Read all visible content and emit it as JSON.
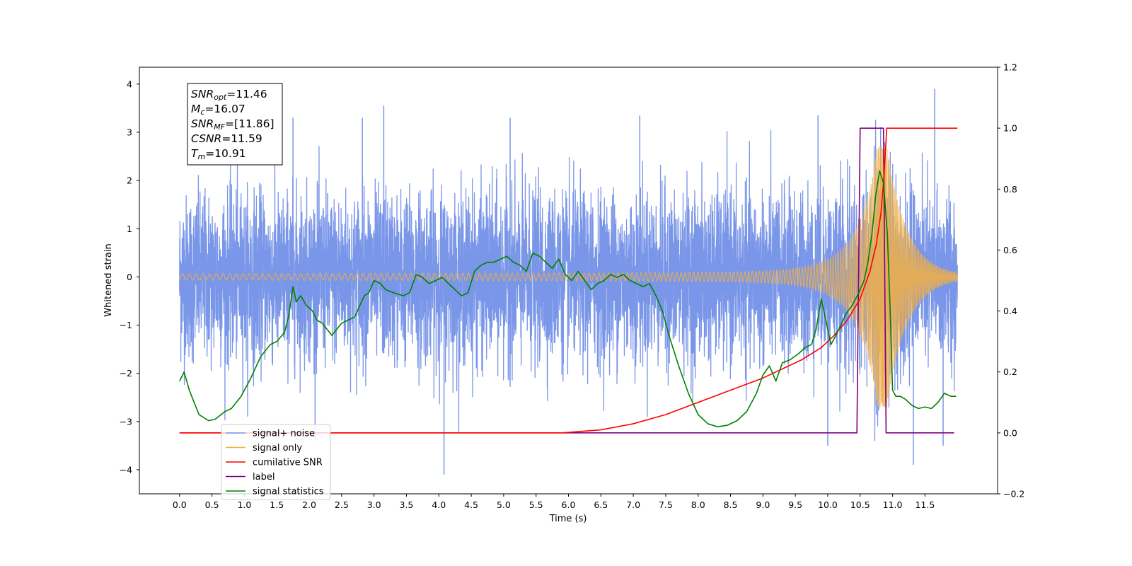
{
  "chart_data": {
    "type": "line",
    "xlabel": "Time (s)",
    "ylabel": "Whitened strain",
    "xlim": [
      -0.62,
      12.62
    ],
    "ylim": [
      -4.5,
      4.35
    ],
    "ylim_right": [
      -0.2,
      1.2
    ],
    "xticks": [
      0.0,
      0.5,
      1.0,
      1.5,
      2.0,
      2.5,
      3.0,
      3.5,
      4.0,
      4.5,
      5.0,
      5.5,
      6.0,
      6.5,
      7.0,
      7.5,
      8.0,
      8.5,
      9.0,
      9.5,
      10.0,
      10.5,
      11.0,
      11.5
    ],
    "xtick_labels": [
      "0.0",
      "0.5",
      "1.0",
      "1.5",
      "2.0",
      "2.5",
      "3.0",
      "3.5",
      "4.0",
      "4.5",
      "5.0",
      "5.5",
      "6.0",
      "6.5",
      "7.0",
      "7.5",
      "8.0",
      "8.5",
      "9.0",
      "9.5",
      "10.0",
      "10.5",
      "11.0",
      "11.5"
    ],
    "yticks_left": [
      -4,
      -3,
      -2,
      -1,
      0,
      1,
      2,
      3,
      4
    ],
    "ytick_labels_left": [
      "−4",
      "−3",
      "−2",
      "−1",
      "0",
      "1",
      "2",
      "3",
      "4"
    ],
    "yticks_right": [
      -0.2,
      0.0,
      0.2,
      0.4,
      0.6,
      0.8,
      1.0,
      1.2
    ],
    "ytick_labels_right": [
      "−0.2",
      "0.0",
      "0.2",
      "0.4",
      "0.6",
      "0.8",
      "1.0",
      "1.2"
    ],
    "grid": false,
    "legend_position": "lower-left",
    "annotation": {
      "lines": [
        {
          "sym": "SNR",
          "sub": "opt",
          "text": "=11.46"
        },
        {
          "sym": "M",
          "sub": "c",
          "text": "=16.07"
        },
        {
          "sym": "SNR",
          "sub": "MF",
          "text": "=[11.86]"
        },
        {
          "sym": "CSNR",
          "sub": "",
          "text": "=11.59"
        },
        {
          "sym": "T",
          "sub": "m",
          "text": "=10.91"
        }
      ]
    },
    "series": [
      {
        "name": "signal+ noise",
        "color": "#7a96e8",
        "axis": "left",
        "noise_sd": 0.85,
        "x_range": [
          0.0,
          12.0
        ],
        "notable_peaks": [
          {
            "x": 2.82,
            "y": 3.3
          },
          {
            "x": 3.15,
            "y": 3.55
          },
          {
            "x": 1.75,
            "y": 3.3
          },
          {
            "x": 5.1,
            "y": 3.3
          },
          {
            "x": 7.1,
            "y": 3.35
          },
          {
            "x": 9.85,
            "y": 3.35
          },
          {
            "x": 11.65,
            "y": 3.9
          },
          {
            "x": 4.08,
            "y": -4.1
          },
          {
            "x": 11.32,
            "y": -3.9
          },
          {
            "x": 11.78,
            "y": -3.5
          },
          {
            "x": 10.0,
            "y": -3.5
          }
        ]
      },
      {
        "name": "signal only",
        "color": "#f5b041",
        "axis": "left",
        "chirp": {
          "merger_time": 10.91,
          "peak_amplitude": 2.7,
          "ringdown_end": 12.0
        }
      },
      {
        "name": "cumilative SNR",
        "color": "#ff0000",
        "axis": "right",
        "x": [
          0.0,
          5.9,
          6.5,
          7.0,
          7.5,
          8.0,
          8.5,
          9.0,
          9.3,
          9.6,
          9.9,
          10.1,
          10.3,
          10.5,
          10.65,
          10.75,
          10.82,
          10.87,
          10.91,
          12.0
        ],
        "y": [
          0.0,
          0.0,
          0.01,
          0.03,
          0.06,
          0.1,
          0.14,
          0.18,
          0.21,
          0.24,
          0.28,
          0.32,
          0.37,
          0.44,
          0.53,
          0.62,
          0.72,
          0.85,
          1.0,
          1.0
        ]
      },
      {
        "name": "label",
        "color": "#800080",
        "axis": "right",
        "x": [
          0.0,
          10.45,
          10.5,
          10.86,
          10.9,
          11.95
        ],
        "y": [
          0.0,
          0.0,
          1.0,
          1.0,
          0.0,
          0.0
        ]
      },
      {
        "name": "signal statistics",
        "color": "#008000",
        "axis": "right",
        "x": [
          0.0,
          0.07,
          0.15,
          0.3,
          0.45,
          0.55,
          0.7,
          0.8,
          0.95,
          1.1,
          1.25,
          1.4,
          1.5,
          1.62,
          1.68,
          1.75,
          1.8,
          1.87,
          1.95,
          2.05,
          2.12,
          2.2,
          2.35,
          2.5,
          2.6,
          2.7,
          2.85,
          2.92,
          3.0,
          3.1,
          3.18,
          3.3,
          3.45,
          3.55,
          3.65,
          3.75,
          3.85,
          3.95,
          4.05,
          4.2,
          4.35,
          4.45,
          4.55,
          4.65,
          4.75,
          4.85,
          4.95,
          5.05,
          5.15,
          5.25,
          5.35,
          5.45,
          5.55,
          5.65,
          5.75,
          5.85,
          5.95,
          6.05,
          6.15,
          6.25,
          6.35,
          6.45,
          6.55,
          6.65,
          6.75,
          6.85,
          6.95,
          7.05,
          7.15,
          7.25,
          7.35,
          7.45,
          7.55,
          7.7,
          7.85,
          8.0,
          8.15,
          8.3,
          8.45,
          8.6,
          8.75,
          8.9,
          9.0,
          9.1,
          9.2,
          9.3,
          9.42,
          9.55,
          9.65,
          9.75,
          9.82,
          9.9,
          9.96,
          10.05,
          10.15,
          10.28,
          10.38,
          10.48,
          10.56,
          10.62,
          10.68,
          10.74,
          10.8,
          10.86,
          10.92,
          10.96,
          11.0,
          11.05,
          11.12,
          11.2,
          11.3,
          11.4,
          11.5,
          11.6,
          11.7,
          11.8,
          11.9,
          11.98
        ],
        "y": [
          0.17,
          0.2,
          0.14,
          0.06,
          0.04,
          0.045,
          0.07,
          0.08,
          0.12,
          0.18,
          0.25,
          0.29,
          0.3,
          0.33,
          0.38,
          0.48,
          0.43,
          0.45,
          0.42,
          0.4,
          0.37,
          0.36,
          0.32,
          0.36,
          0.37,
          0.38,
          0.45,
          0.46,
          0.5,
          0.49,
          0.47,
          0.46,
          0.45,
          0.46,
          0.52,
          0.51,
          0.49,
          0.5,
          0.51,
          0.48,
          0.45,
          0.46,
          0.53,
          0.55,
          0.56,
          0.56,
          0.57,
          0.58,
          0.56,
          0.55,
          0.53,
          0.59,
          0.58,
          0.56,
          0.54,
          0.57,
          0.52,
          0.5,
          0.53,
          0.5,
          0.47,
          0.49,
          0.5,
          0.52,
          0.51,
          0.52,
          0.5,
          0.49,
          0.48,
          0.49,
          0.45,
          0.4,
          0.32,
          0.22,
          0.13,
          0.06,
          0.03,
          0.02,
          0.025,
          0.04,
          0.07,
          0.13,
          0.19,
          0.22,
          0.17,
          0.23,
          0.24,
          0.26,
          0.28,
          0.29,
          0.34,
          0.44,
          0.38,
          0.29,
          0.33,
          0.39,
          0.42,
          0.46,
          0.5,
          0.56,
          0.65,
          0.78,
          0.86,
          0.82,
          0.65,
          0.42,
          0.14,
          0.12,
          0.12,
          0.11,
          0.09,
          0.08,
          0.085,
          0.08,
          0.1,
          0.13,
          0.12,
          0.12
        ]
      }
    ]
  }
}
